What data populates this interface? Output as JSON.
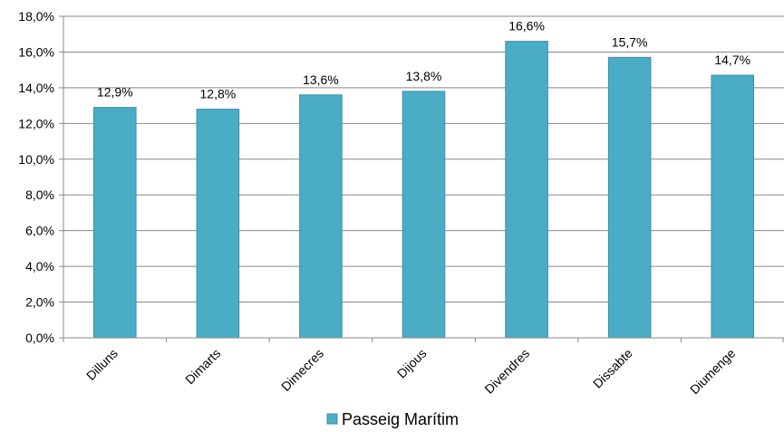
{
  "chart_data": {
    "type": "bar",
    "categories": [
      "Dilluns",
      "Dimarts",
      "Dimecres",
      "Dijous",
      "Divendres",
      "Dissabte",
      "Diumenge"
    ],
    "series": [
      {
        "name": "Passeig Marítim",
        "values": [
          12.9,
          12.8,
          13.6,
          13.8,
          16.6,
          15.7,
          14.7
        ],
        "data_labels": [
          "12,9%",
          "12,8%",
          "13,6%",
          "13,8%",
          "16,6%",
          "15,7%",
          "14,7%"
        ],
        "color": "#4BACC6"
      }
    ],
    "y_ticks": [
      0,
      2,
      4,
      6,
      8,
      10,
      12,
      14,
      16,
      18
    ],
    "y_tick_labels": [
      "0,0%",
      "2,0%",
      "4,0%",
      "6,0%",
      "8,0%",
      "10,0%",
      "12,0%",
      "14,0%",
      "16,0%",
      "18,0%"
    ],
    "ylim": [
      0,
      18
    ],
    "grid": true,
    "legend_position": "bottom",
    "title": "",
    "xlabel": "",
    "ylabel": ""
  },
  "colors": {
    "bar_fill": "#4BACC6",
    "bar_stroke": "#3E8FA6",
    "grid": "#888888",
    "axis": "#888888"
  }
}
